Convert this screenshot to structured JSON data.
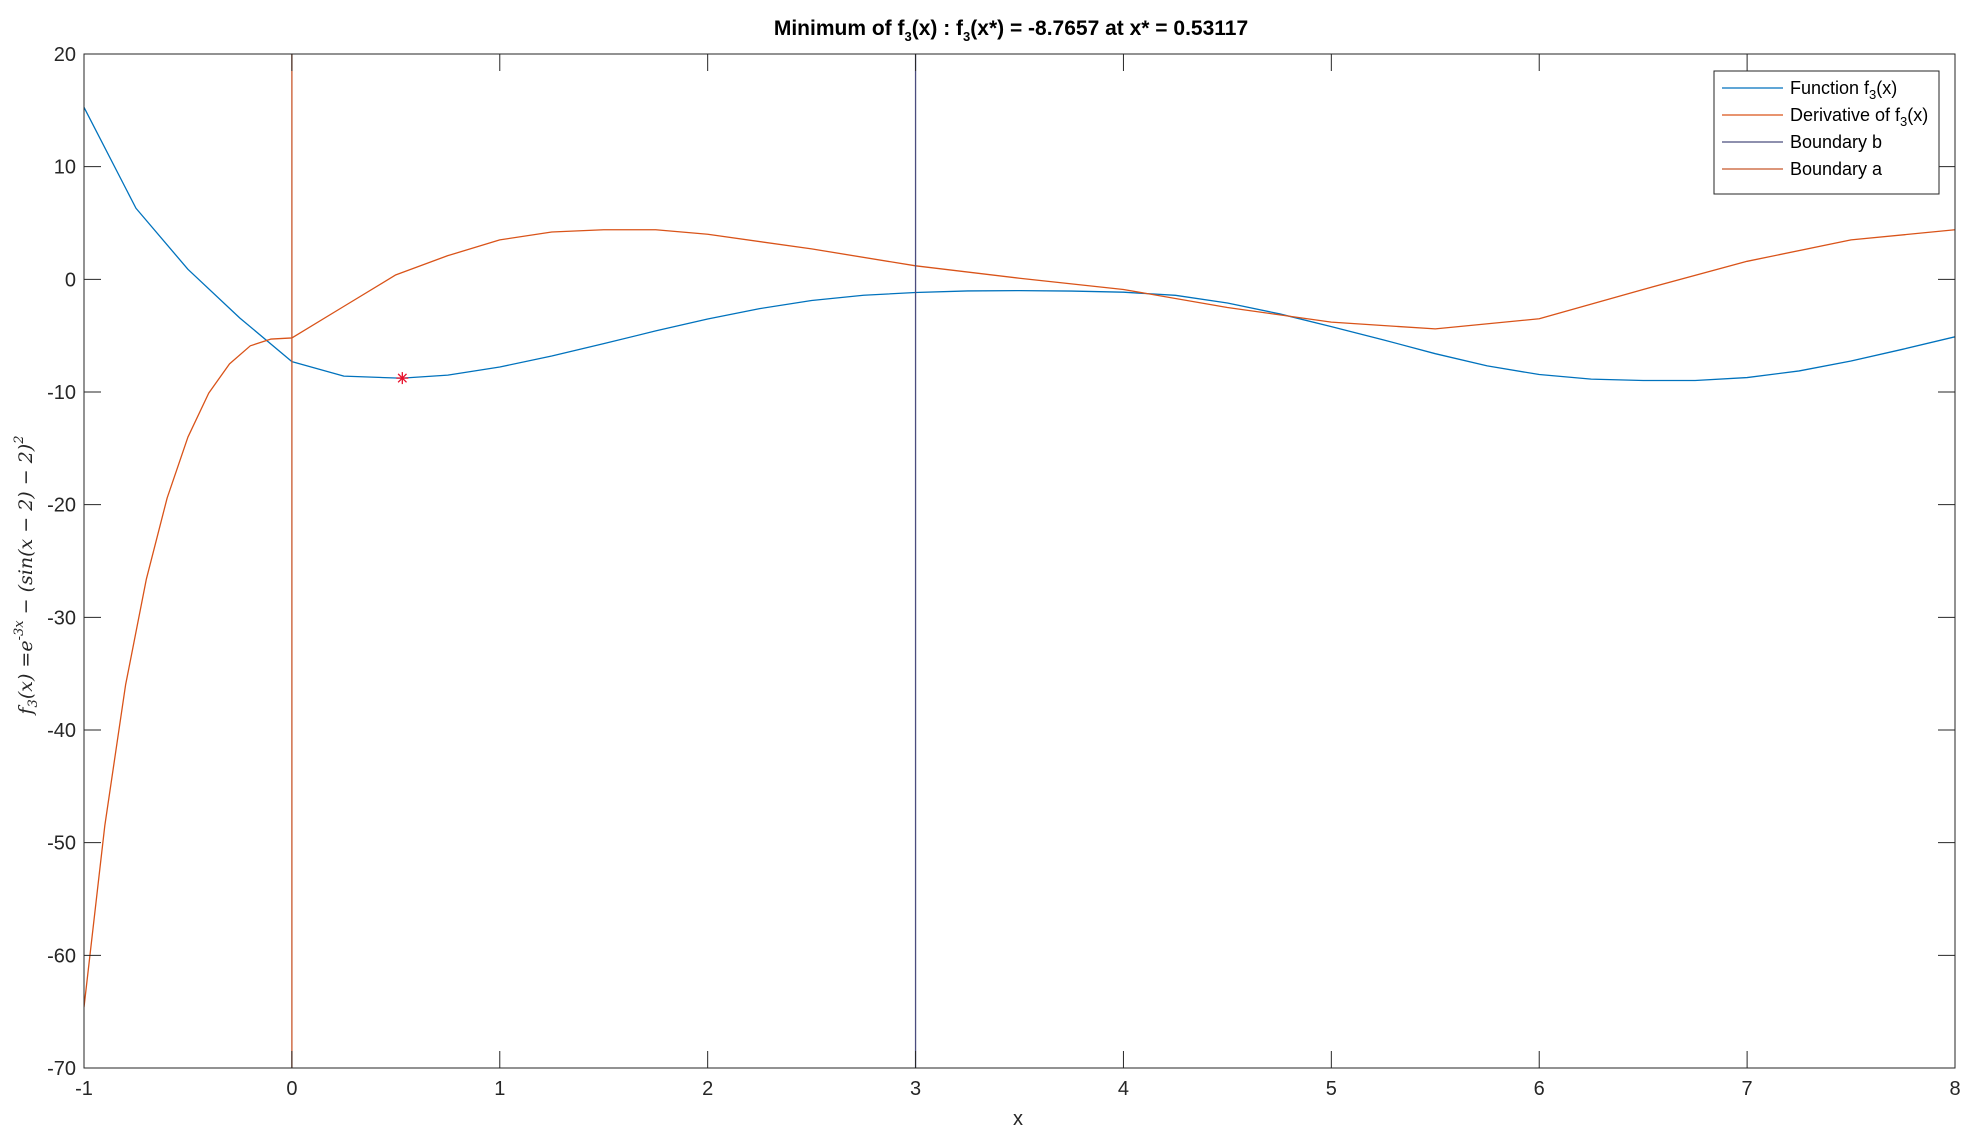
{
  "chart_data": {
    "type": "line",
    "title": {
      "prefix": "Minimum of f",
      "sub1": "3",
      "middle": "(x) : f",
      "sub2": "3",
      "suffix": "(x*) = -8.7657 at x* = 0.53117"
    },
    "xlabel": "x",
    "ylabel": {
      "f": "f",
      "sub": "3",
      "body": "(x) =e",
      "exp": "-3x",
      "tail": " − (sin(x − 2) − 2)",
      "sq": "2"
    },
    "xlim": [
      -1,
      8
    ],
    "ylim": [
      -70,
      20
    ],
    "x_ticks": [
      -1,
      0,
      1,
      2,
      3,
      4,
      5,
      6,
      7,
      8
    ],
    "y_ticks": [
      -70,
      -60,
      -50,
      -40,
      -30,
      -20,
      -10,
      0,
      10,
      20
    ],
    "grid": false,
    "legend_position": "top-right",
    "series": [
      {
        "name": "Function f3(x)",
        "legend": {
          "prefix": "Function f",
          "sub": "3",
          "suffix": "(x)"
        },
        "color": "#0072BD",
        "x": [
          -1,
          -0.75,
          -0.5,
          -0.25,
          0,
          0.25,
          0.5,
          0.53117,
          0.75,
          1,
          1.25,
          1.5,
          1.75,
          2,
          2.25,
          2.5,
          2.75,
          3,
          3.25,
          3.5,
          3.75,
          4,
          4.25,
          4.5,
          4.75,
          5,
          5.25,
          5.5,
          5.75,
          6,
          6.25,
          6.5,
          6.75,
          7,
          7.25,
          7.5,
          7.75,
          8
        ],
        "y": [
          15.27,
          6.31,
          0.89,
          -3.44,
          -7.3,
          -8.59,
          -8.76,
          -8.77,
          -8.5,
          -7.78,
          -6.8,
          -5.71,
          -4.58,
          -3.52,
          -2.6,
          -1.88,
          -1.41,
          -1.17,
          -1.03,
          -1.0,
          -1.04,
          -1.14,
          -1.42,
          -2.1,
          -3.06,
          -4.2,
          -5.37,
          -6.6,
          -7.68,
          -8.45,
          -8.86,
          -8.98,
          -8.98,
          -8.72,
          -8.13,
          -7.25,
          -6.2,
          -5.1
        ]
      },
      {
        "name": "Derivative of f3(x)",
        "legend": {
          "prefix": "Derivative of f",
          "sub": "3",
          "suffix": "(x)"
        },
        "color": "#D95319",
        "x": [
          -1,
          -0.9,
          -0.8,
          -0.7,
          -0.6,
          -0.5,
          -0.4,
          -0.3,
          -0.2,
          -0.1,
          0,
          0.25,
          0.5,
          0.75,
          1,
          1.25,
          1.5,
          1.75,
          2,
          2.5,
          3,
          3.5,
          4,
          4.5,
          5,
          5.5,
          6,
          6.5,
          7,
          7.5,
          8
        ],
        "y": [
          -64.6,
          -48.5,
          -36.0,
          -26.6,
          -19.4,
          -14.0,
          -10.1,
          -7.5,
          -5.9,
          -5.3,
          -5.2,
          -2.4,
          0.4,
          2.1,
          3.5,
          4.2,
          4.4,
          4.4,
          4.0,
          2.7,
          1.2,
          0.1,
          -0.9,
          -2.5,
          -3.8,
          -4.4,
          -3.5,
          -0.9,
          1.6,
          3.5,
          4.4
        ]
      },
      {
        "name": "Boundary b",
        "legend": {
          "prefix": "Boundary b",
          "sub": "",
          "suffix": ""
        },
        "color": "#4B4D7E",
        "x": [
          3,
          3
        ],
        "y": [
          -70,
          20
        ]
      },
      {
        "name": "Boundary a",
        "legend": {
          "prefix": "Boundary a",
          "sub": "",
          "suffix": ""
        },
        "color": "#C8572B",
        "x": [
          0,
          0
        ],
        "y": [
          -70,
          20
        ]
      }
    ],
    "marker": {
      "x": 0.53117,
      "y": -8.7657,
      "color": "#E8102A",
      "symbol": "*"
    }
  }
}
